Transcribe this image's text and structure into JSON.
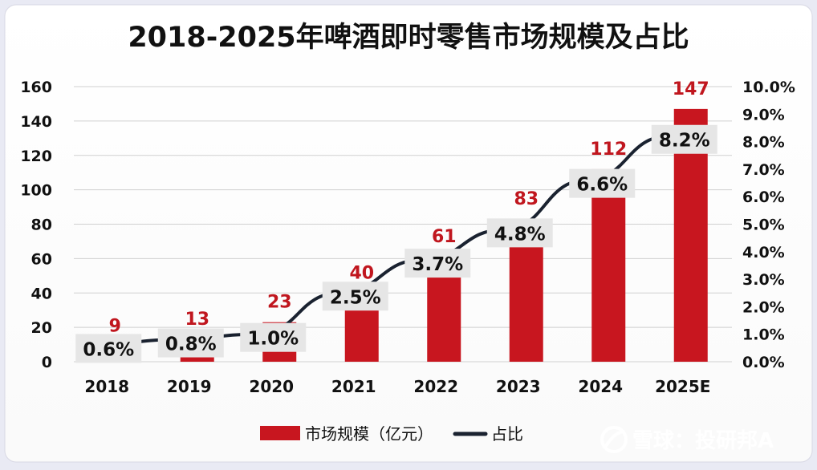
{
  "chart_data": {
    "type": "bar",
    "title": "2018-2025年啤酒即时零售市场规模及占比",
    "categories": [
      "2018",
      "2019",
      "2020",
      "2021",
      "2022",
      "2023",
      "2024",
      "2025E"
    ],
    "series": [
      {
        "name": "市场规模（亿元）",
        "type": "bar",
        "axis": "left",
        "values": [
          9,
          13,
          23,
          40,
          61,
          83,
          112,
          147
        ],
        "labels": [
          "9",
          "13",
          "23",
          "40",
          "61",
          "83",
          "112",
          "147"
        ]
      },
      {
        "name": "占比",
        "type": "line",
        "axis": "right",
        "values": [
          0.6,
          0.8,
          1.0,
          2.5,
          3.7,
          4.8,
          6.6,
          8.2
        ],
        "labels": [
          "0.6%",
          "0.8%",
          "1.0%",
          "2.5%",
          "3.7%",
          "4.8%",
          "6.6%",
          "8.2%"
        ]
      }
    ],
    "y_left": {
      "range": [
        0,
        160
      ],
      "ticks": [
        "0",
        "20",
        "40",
        "60",
        "80",
        "100",
        "120",
        "140",
        "160"
      ]
    },
    "y_right": {
      "range": [
        0,
        10
      ],
      "ticks": [
        "0.0%",
        "1.0%",
        "2.0%",
        "3.0%",
        "4.0%",
        "5.0%",
        "6.0%",
        "7.0%",
        "8.0%",
        "9.0%",
        "10.0%"
      ]
    },
    "grid": true,
    "legend_position": "bottom-center",
    "colors": {
      "bar": "#c8161f",
      "line": "#1a2230",
      "value_label": "#c0161e",
      "grid": "#d0d0d0",
      "pct_label_bg": "#e6e6e6"
    }
  },
  "watermark": {
    "text": "雪球：投研邦A",
    "icon": "snowball-logo-icon"
  }
}
